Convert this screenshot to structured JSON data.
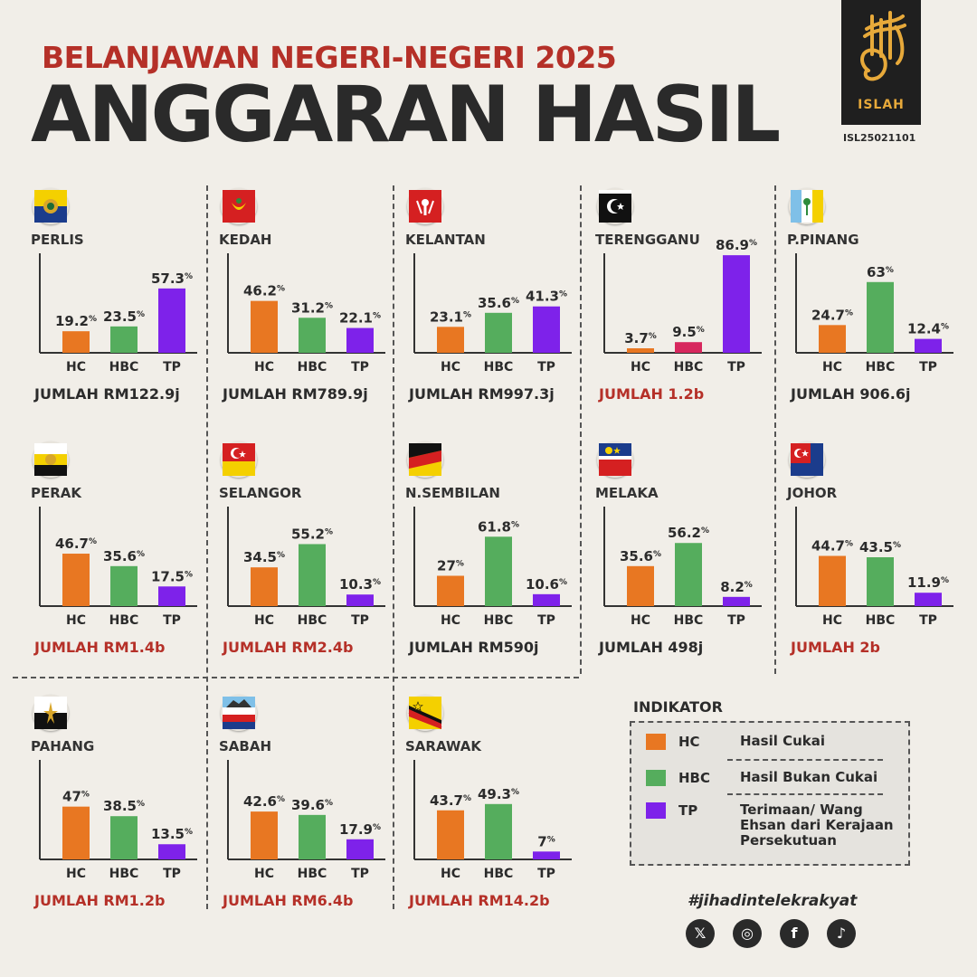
{
  "header": {
    "subtitle": "BELANJAWAN NEGERI-NEGERI 2025",
    "title": "ANGGARAN HASIL"
  },
  "brand": {
    "name": "ISLAH",
    "code": "ISL25021101"
  },
  "colors": {
    "hc": "#e87722",
    "hbc": "#55ad5d",
    "tp": "#7e22ea",
    "tp_terengganu_hbc": "#d7275d",
    "red_text": "#b53028",
    "dark_text": "#2b2b2b"
  },
  "chart_data": [
    {
      "type": "bar",
      "state": "PERLIS",
      "flag": "perlis-flag",
      "categories": [
        "HC",
        "HBC",
        "TP"
      ],
      "values": [
        19.2,
        23.5,
        57.3
      ],
      "total": "JUMLAH RM122.9j",
      "total_highlight": false
    },
    {
      "type": "bar",
      "state": "KEDAH",
      "flag": "kedah-flag",
      "categories": [
        "HC",
        "HBC",
        "TP"
      ],
      "values": [
        46.2,
        31.2,
        22.1
      ],
      "total": "JUMLAH RM789.9j",
      "total_highlight": false
    },
    {
      "type": "bar",
      "state": "KELANTAN",
      "flag": "kelantan-flag",
      "categories": [
        "HC",
        "HBC",
        "TP"
      ],
      "values": [
        23.1,
        35.6,
        41.3
      ],
      "total": "JUMLAH RM997.3j",
      "total_highlight": false
    },
    {
      "type": "bar",
      "state": "TERENGGANU",
      "flag": "terengganu-flag",
      "categories": [
        "HC",
        "HBC",
        "TP"
      ],
      "values": [
        3.7,
        9.5,
        86.9
      ],
      "total": "JUMLAH 1.2b",
      "total_highlight": true,
      "hbc_color": "#d7275d"
    },
    {
      "type": "bar",
      "state": "P.PINANG",
      "flag": "penang-flag",
      "categories": [
        "HC",
        "HBC",
        "TP"
      ],
      "values": [
        24.7,
        63,
        12.4
      ],
      "total": "JUMLAH 906.6j",
      "total_highlight": false
    },
    {
      "type": "bar",
      "state": "PERAK",
      "flag": "perak-flag",
      "categories": [
        "HC",
        "HBC",
        "TP"
      ],
      "values": [
        46.7,
        35.6,
        17.5
      ],
      "total": "JUMLAH RM1.4b",
      "total_highlight": true
    },
    {
      "type": "bar",
      "state": "SELANGOR",
      "flag": "selangor-flag",
      "categories": [
        "HC",
        "HBC",
        "TP"
      ],
      "values": [
        34.5,
        55.2,
        10.3
      ],
      "total": "JUMLAH RM2.4b",
      "total_highlight": true
    },
    {
      "type": "bar",
      "state": "N.SEMBILAN",
      "flag": "nsembilan-flag",
      "categories": [
        "HC",
        "HBC",
        "TP"
      ],
      "values": [
        27,
        61.8,
        10.6
      ],
      "total": "JUMLAH RM590j",
      "total_highlight": false
    },
    {
      "type": "bar",
      "state": "MELAKA",
      "flag": "melaka-flag",
      "categories": [
        "HC",
        "HBC",
        "TP"
      ],
      "values": [
        35.6,
        56.2,
        8.2
      ],
      "total": "JUMLAH 498j",
      "total_highlight": false
    },
    {
      "type": "bar",
      "state": "JOHOR",
      "flag": "johor-flag",
      "categories": [
        "HC",
        "HBC",
        "TP"
      ],
      "values": [
        44.7,
        43.5,
        11.9
      ],
      "total": "JUMLAH 2b",
      "total_highlight": true
    },
    {
      "type": "bar",
      "state": "PAHANG",
      "flag": "pahang-flag",
      "categories": [
        "HC",
        "HBC",
        "TP"
      ],
      "values": [
        47,
        38.5,
        13.5
      ],
      "total": "JUMLAH RM1.2b",
      "total_highlight": true
    },
    {
      "type": "bar",
      "state": "SABAH",
      "flag": "sabah-flag",
      "categories": [
        "HC",
        "HBC",
        "TP"
      ],
      "values": [
        42.6,
        39.6,
        17.9
      ],
      "total": "JUMLAH RM6.4b",
      "total_highlight": true
    },
    {
      "type": "bar",
      "state": "SARAWAK",
      "flag": "sarawak-flag",
      "categories": [
        "HC",
        "HBC",
        "TP"
      ],
      "values": [
        43.7,
        49.3,
        7
      ],
      "total": "JUMLAH RM14.2b",
      "total_highlight": true
    }
  ],
  "legend": {
    "title": "INDIKATOR",
    "items": [
      {
        "code": "HC",
        "label": "Hasil Cukai",
        "color": "#e87722"
      },
      {
        "code": "HBC",
        "label": "Hasil Bukan Cukai",
        "color": "#55ad5d"
      },
      {
        "code": "TP",
        "label": "Terimaan/ Wang Ehsan dari Kerajaan Persekutuan",
        "color": "#7e22ea"
      }
    ]
  },
  "footer": {
    "hashtag": "#jihadintelekrakyat",
    "social": [
      {
        "icon": "x-icon",
        "glyph": "𝕏"
      },
      {
        "icon": "instagram-icon",
        "glyph": "◎"
      },
      {
        "icon": "facebook-icon",
        "glyph": "f"
      },
      {
        "icon": "tiktok-icon",
        "glyph": "♪"
      }
    ]
  }
}
